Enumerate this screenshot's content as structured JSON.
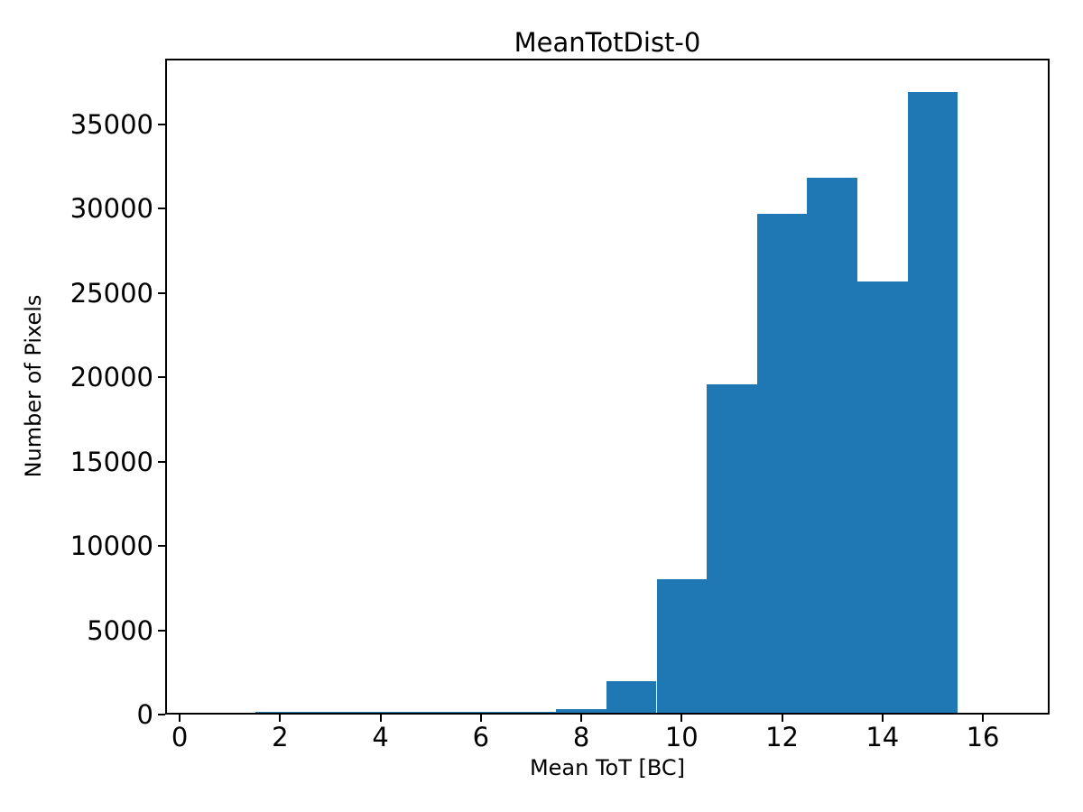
{
  "figure": {
    "background_color": "#ffffff",
    "text_color": "#000000"
  },
  "chart_data": {
    "type": "bar",
    "subtype": "histogram",
    "title": "MeanTotDist-0",
    "xlabel": "Mean ToT [BC]",
    "ylabel": "Number of Pixels",
    "bar_color": "#1f77b4",
    "grid": false,
    "legend": null,
    "bin_edges": [
      1.5,
      2.5,
      3.5,
      4.5,
      5.5,
      6.5,
      7.5,
      8.5,
      9.5,
      10.5,
      11.5,
      12.5,
      13.5,
      14.5,
      15.5
    ],
    "values": [
      150,
      150,
      150,
      150,
      150,
      150,
      320,
      1980,
      8020,
      19600,
      29700,
      31800,
      25670,
      36900
    ],
    "xlim": [
      -0.29,
      17.33
    ],
    "ylim": [
      0,
      38880
    ],
    "xticks": [
      0,
      2,
      4,
      6,
      8,
      10,
      12,
      14,
      16
    ],
    "yticks": [
      0,
      5000,
      10000,
      15000,
      20000,
      25000,
      30000,
      35000
    ]
  }
}
